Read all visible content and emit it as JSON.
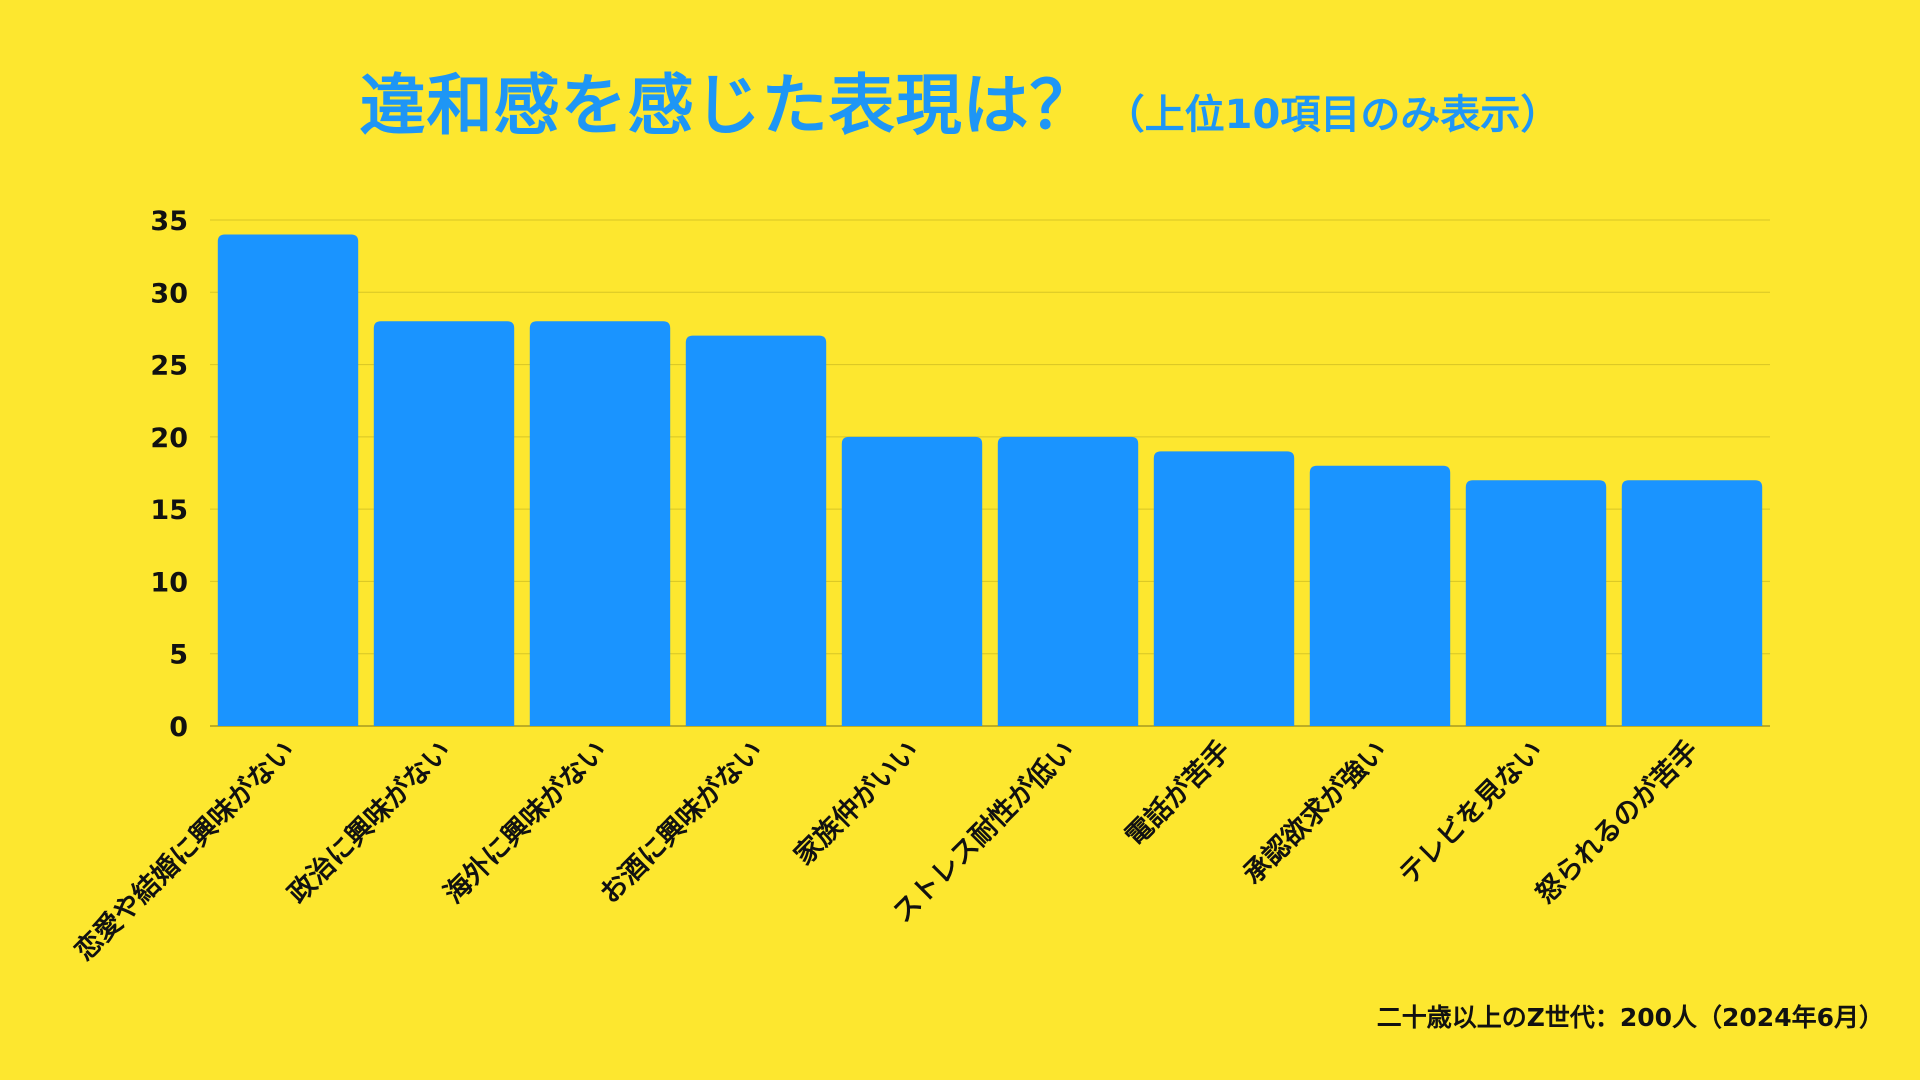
{
  "chart_data": {
    "type": "bar",
    "title": "違和感を感じた表現は？",
    "subtitle": "（上位10項目のみ表示）",
    "categories": [
      "恋愛や結婚に興味がない",
      "政治に興味がない",
      "海外に興味がない",
      "お酒に興味がない",
      "家族仲がいい",
      "ストレス耐性が低い",
      "電話が苦手",
      "承認欲求が強い",
      "テレビを見ない",
      "怒られるのが苦手"
    ],
    "values": [
      34,
      28,
      28,
      27,
      20,
      20,
      19,
      18,
      17,
      17
    ],
    "yticks": [
      0,
      5,
      10,
      15,
      20,
      25,
      30,
      35
    ],
    "ylim": [
      0,
      35
    ],
    "xlabel": "",
    "ylabel": "",
    "grid": true,
    "bar_color": "#1A94FF",
    "background_color": "#FDE72F",
    "title_color": "#1E96F5"
  },
  "footnote": "二十歳以上のZ世代：200人（2024年6月）"
}
